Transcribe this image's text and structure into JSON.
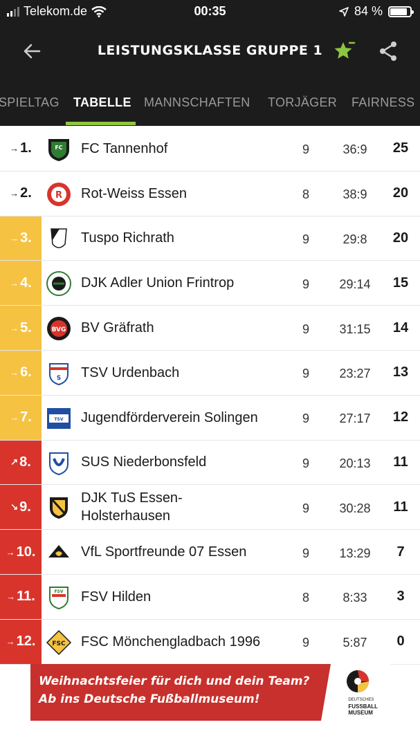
{
  "status_bar": {
    "carrier": "Telekom.de",
    "time": "00:35",
    "battery_percent": "84 %",
    "battery_level": 0.84
  },
  "header": {
    "title": "LEISTUNGSKLASSE GRUPPE 1",
    "accent_color": "#8dc63f"
  },
  "tabs": [
    {
      "label": "SPIELTAG",
      "active": false
    },
    {
      "label": "TABELLE",
      "active": true
    },
    {
      "label": "MANNSCHAFTEN",
      "active": false
    },
    {
      "label": "TORJÄGER",
      "active": false
    },
    {
      "label": "FAIRNESS",
      "active": false
    }
  ],
  "table": {
    "rows": [
      {
        "rank": "1.",
        "trend": "→",
        "zone": "none",
        "team": "FC Tannenhof",
        "played": "9",
        "goals": "36:9",
        "points": "25"
      },
      {
        "rank": "2.",
        "trend": "→",
        "zone": "none",
        "team": "Rot-Weiss Essen",
        "played": "8",
        "goals": "38:9",
        "points": "20"
      },
      {
        "rank": "3.",
        "trend": "→",
        "zone": "yellow",
        "team": "Tuspo Richrath",
        "played": "9",
        "goals": "29:8",
        "points": "20"
      },
      {
        "rank": "4.",
        "trend": "→",
        "zone": "yellow",
        "team": "DJK Adler Union Frintrop",
        "played": "9",
        "goals": "29:14",
        "points": "15"
      },
      {
        "rank": "5.",
        "trend": "→",
        "zone": "yellow",
        "team": "BV Gräfrath",
        "played": "9",
        "goals": "31:15",
        "points": "14"
      },
      {
        "rank": "6.",
        "trend": "→",
        "zone": "yellow",
        "team": "TSV Urdenbach",
        "played": "9",
        "goals": "23:27",
        "points": "13"
      },
      {
        "rank": "7.",
        "trend": "→",
        "zone": "yellow",
        "team": "Jugendförderverein Solingen",
        "played": "9",
        "goals": "27:17",
        "points": "12"
      },
      {
        "rank": "8.",
        "trend": "↗",
        "zone": "red",
        "team": "SUS Niederbonsfeld",
        "played": "9",
        "goals": "20:13",
        "points": "11"
      },
      {
        "rank": "9.",
        "trend": "↘",
        "zone": "red",
        "team": "DJK TuS Essen-Holsterhausen",
        "played": "9",
        "goals": "30:28",
        "points": "11"
      },
      {
        "rank": "10.",
        "trend": "→",
        "zone": "red",
        "team": "VfL Sportfreunde 07 Essen",
        "played": "9",
        "goals": "13:29",
        "points": "7"
      },
      {
        "rank": "11.",
        "trend": "→",
        "zone": "red",
        "team": "FSV Hilden",
        "played": "8",
        "goals": "8:33",
        "points": "3"
      },
      {
        "rank": "12.",
        "trend": "→",
        "zone": "red",
        "team": "FSC Mönchengladbach 1996",
        "played": "9",
        "goals": "5:87",
        "points": "0"
      }
    ],
    "logo_icons": [
      "fc-tannenhof-crest-icon",
      "rot-weiss-essen-crest-icon",
      "tuspo-richrath-crest-icon",
      "djk-adler-union-frintrop-crest-icon",
      "bv-graefrath-crest-icon",
      "tsv-urdenbach-crest-icon",
      "jfv-solingen-crest-icon",
      "sus-niederbonsfeld-crest-icon",
      "djk-tus-essen-holsterhausen-crest-icon",
      "vfl-sportfreunde-07-essen-crest-icon",
      "fsv-hilden-crest-icon",
      "fsc-moenchengladbach-crest-icon"
    ],
    "zone_colors": {
      "yellow": "#f5c242",
      "red": "#d8342c"
    }
  },
  "banner": {
    "line1": "Weihnachtsfeier für dich und dein Team?",
    "line2": "Ab ins Deutsche Fußballmuseum!",
    "logo_text_1": "DEUTSCHES",
    "logo_text_2": "FUSSBALL",
    "logo_text_3": "MUSEUM",
    "color": "#c7302c"
  }
}
